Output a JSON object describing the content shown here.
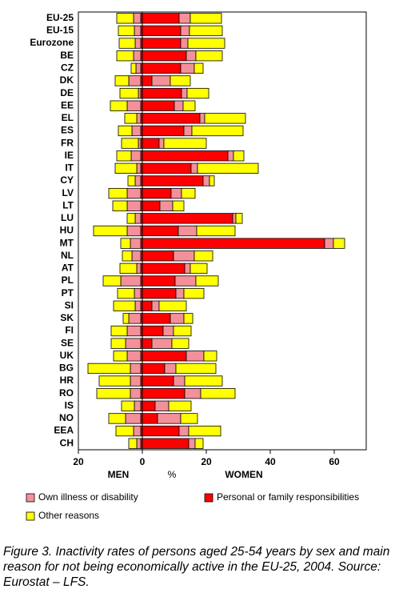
{
  "chart_data": {
    "type": "diverging_bar",
    "categories": [
      "EU-25",
      "EU-15",
      "Eurozone",
      "BE",
      "CZ",
      "DK",
      "DE",
      "EE",
      "EL",
      "ES",
      "FR",
      "IE",
      "IT",
      "CY",
      "LV",
      "LT",
      "LU",
      "HU",
      "MT",
      "NL",
      "AT",
      "PL",
      "PT",
      "SI",
      "SK",
      "FI",
      "SE",
      "UK",
      "BG",
      "HR",
      "RO",
      "IS",
      "NO",
      "EEA",
      "CH"
    ],
    "series": [
      {
        "name": "Personal or family responsibilities",
        "color": "#ff0000",
        "men": [
          -0.5,
          -0.5,
          -0.5,
          -0.5,
          -0.5,
          -0.5,
          -0.5,
          -0.5,
          -0.5,
          -0.5,
          -0.5,
          -0.5,
          -0.5,
          -0.5,
          -0.5,
          -0.5,
          -0.5,
          -0.5,
          -0.5,
          -0.5,
          -0.5,
          -0.5,
          -0.5,
          -0.5,
          -0.5,
          -0.5,
          -0.5,
          -0.5,
          -0.5,
          -0.5,
          -0.5,
          -0.5,
          -0.5,
          -0.5,
          -0.5
        ],
        "women": [
          11.5,
          12,
          12,
          13.75,
          12,
          3,
          12.25,
          10,
          18,
          13,
          5.25,
          26.75,
          15.25,
          19,
          9,
          5.5,
          28.25,
          11.25,
          57,
          9.75,
          13.25,
          10.25,
          10.5,
          3,
          8.75,
          6.5,
          3,
          13.75,
          7,
          9.75,
          13.25,
          4,
          4.75,
          11.5,
          14.5
        ]
      },
      {
        "name": "Own illness or disability",
        "color": "#f4909a",
        "men": [
          -2.25,
          -2,
          -1.75,
          -2.25,
          -1.5,
          -3.75,
          -0.75,
          -4.25,
          -1.25,
          -2.75,
          -0.75,
          -3,
          -1.25,
          -1.75,
          -4.25,
          -4.25,
          -1.75,
          -4.25,
          -3.25,
          -2.75,
          -1.25,
          -6.25,
          -2,
          -1.75,
          -3.75,
          -4.25,
          -4.75,
          -4.25,
          -3.25,
          -3.25,
          -3.25,
          -2,
          -4.75,
          -2.25,
          -1.25
        ],
        "women": [
          3.5,
          2.75,
          2.25,
          3,
          4.25,
          5.75,
          1.75,
          2.75,
          1.5,
          2.5,
          1.5,
          1.75,
          2,
          2,
          3.25,
          4,
          1,
          5.75,
          2.75,
          6.5,
          1.75,
          6.5,
          2.5,
          2.25,
          4.25,
          3.25,
          6.25,
          5.5,
          3.5,
          3.5,
          5,
          4.25,
          7.25,
          3,
          2
        ]
      },
      {
        "name": "Other reasons",
        "color": "#ffff00",
        "men": [
          -5.25,
          -5,
          -5,
          -5.25,
          -1.5,
          -4.25,
          -5.75,
          -5.25,
          -3.75,
          -4.25,
          -5.25,
          -4.5,
          -6.75,
          -2.25,
          -5.75,
          -4.5,
          -2.5,
          -10.5,
          -3,
          -3,
          -5.25,
          -5.5,
          -5.25,
          -6.75,
          -1.75,
          -5,
          -4.5,
          -4.25,
          -13.25,
          -9.75,
          -10.5,
          -4,
          -5.25,
          -5.5,
          -2.5
        ],
        "women": [
          9.75,
          10.25,
          11.5,
          8.25,
          2.75,
          6.25,
          6.75,
          3.75,
          12.75,
          16,
          13.25,
          3.25,
          19,
          1.5,
          4.25,
          3.5,
          2,
          12,
          3.5,
          5.75,
          5.25,
          7,
          6.25,
          8.5,
          2.75,
          5.5,
          5.25,
          4,
          12.5,
          11.75,
          10.75,
          7,
          5.25,
          10,
          2.5
        ]
      }
    ],
    "xlim": [
      -20,
      70
    ],
    "xticks": [
      {
        "value": -20,
        "label": "20"
      },
      0,
      20,
      40,
      60
    ],
    "left_label": "MEN",
    "unit_label": "%",
    "right_label": "WOMEN",
    "caption": "Figure 3. Inactivity rates of persons aged 25-54 years by sex and main reason for not being economically active in the EU-25, 2004. Source: Eurostat – LFS."
  }
}
